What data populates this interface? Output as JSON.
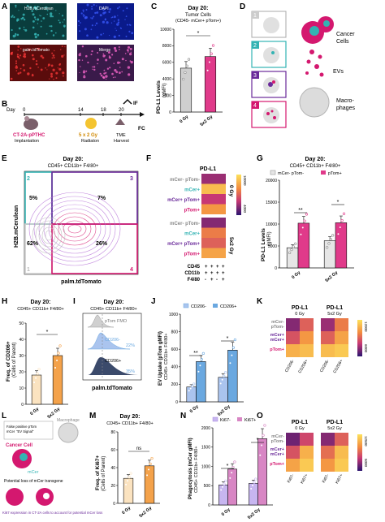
{
  "panels": {
    "A": {
      "letter": "A",
      "labels": [
        "H2B.mCerulean",
        "DAPI",
        "palm.tdTomato",
        "Merge"
      ]
    },
    "B": {
      "letter": "B",
      "day_label": "Day",
      "days": [
        "0",
        "14",
        "18",
        "20"
      ],
      "ct": "CT-2A-pPTHC",
      "ct_sub": "Implantation",
      "rad": "5 x 2 Gy",
      "rad_sub": "Radiaton",
      "tme": "TME",
      "tme_sub": "Harvest",
      "if": "IF",
      "fc": "FC"
    },
    "C": {
      "letter": "C",
      "title": "Day 20:",
      "subtitle": "Tumor Cells",
      "subtitle2": "(CD45- mCer+ pTom+)",
      "ylabel1": "PD-L1 Levels",
      "ylabel2": "(gMFI)",
      "yticks": [
        "0",
        "2000",
        "4000",
        "6000",
        "8000",
        "10000"
      ],
      "xticks": [
        "0 Gy",
        "5x2 Gy"
      ],
      "sig": "*"
    },
    "D": {
      "letter": "D",
      "steps": [
        "1",
        "2",
        "3",
        "4"
      ],
      "cancer": "Cancer",
      "cells": "Cells",
      "evs": "EVs",
      "macro": "Macro-",
      "phages": "phages"
    },
    "E": {
      "letter": "E",
      "title": "Day 20:",
      "subtitle": "CD45+ CD11b+ F4/80+",
      "quadrants": [
        "2",
        "3",
        "1",
        "4"
      ],
      "pct": [
        "5%",
        "7%",
        "62%",
        "26%"
      ],
      "ylabel": "H2B.mCerulean",
      "xlabel": "palm.tdTomato"
    },
    "F": {
      "letter": "F",
      "title": "PD-L1",
      "rows": [
        "mCer- pTom-",
        "mCer+",
        "mCer+ pTom+",
        "pTom+",
        "mCer- pTom-",
        "mCer+",
        "mCer+ pTom+",
        "pTom+"
      ],
      "groups": [
        "0 Gy",
        "5x2 Gy"
      ],
      "scale": [
        "10000",
        "4000"
      ],
      "markers": [
        "CD45",
        "CD11b",
        "F4/80"
      ],
      "signs": [
        [
          "+",
          "+",
          "+",
          "+"
        ],
        [
          "+",
          "+",
          "+",
          "+"
        ],
        [
          "-",
          "+",
          "-",
          "+"
        ]
      ]
    },
    "G": {
      "letter": "G",
      "title": "Day 20:",
      "subtitle": "CD45+ CD11b+ F4/80+",
      "legend": [
        "mCer- pTom-",
        "pTom+"
      ],
      "ylabel1": "PD-L1 Levels",
      "ylabel2": "(gMFI)",
      "yticks": [
        "0",
        "5000",
        "10000",
        "15000",
        "20000"
      ],
      "xticks": [
        "0 Gy",
        "5x2 Gy"
      ],
      "sig": [
        "**",
        "*"
      ]
    },
    "H": {
      "letter": "H",
      "title": "Day 20:",
      "subtitle": "CD45+ CD11b+ F4/80+",
      "ylabel1": "Freq. of CD206+",
      "ylabel2": "(Cells of Parent)",
      "yticks": [
        "0",
        "10",
        "20",
        "30",
        "40",
        "50"
      ],
      "xticks": [
        "0 Gy",
        "5x2 Gy"
      ],
      "sig": "*"
    },
    "I": {
      "letter": "I",
      "title": "Day 20:",
      "subtitle": "CD45+ CD11b+ F4/80+",
      "hist": [
        "pTom FMO",
        "CD206-",
        "CD206+"
      ],
      "pct": [
        "22%",
        "35%"
      ],
      "xlabel": "palm.tdTomato"
    },
    "J": {
      "letter": "J",
      "legend": [
        "CD206-",
        "CD206+"
      ],
      "ylabel1": "EV Uptake (pTom gMFI)",
      "ylabel2": "CD45+ CD11b+ F4/80+",
      "yticks": [
        "0",
        "200",
        "400",
        "600",
        "800",
        "1000"
      ],
      "xticks": [
        "0 Gy",
        "5x2 Gy"
      ],
      "sig": [
        "**",
        "*"
      ]
    },
    "K": {
      "letter": "K",
      "titles": [
        "PD-L1",
        "PD-L1"
      ],
      "groups": [
        "0 Gy",
        "5x2 Gy"
      ],
      "rows": [
        "mCer-",
        "pTom-",
        "mCer+",
        "mCer+",
        "pTom+",
        "pTom+"
      ],
      "cols": [
        "CD206-",
        "CD206+"
      ],
      "scale": [
        "12000",
        "6000"
      ]
    },
    "L": {
      "letter": "L",
      "box": [
        "False positive pTom",
        "mCer",
        "\"EV Signal\""
      ],
      "macro": "Macrophage",
      "cancer": "Cancer Cell",
      "mcer": "mCer",
      "loss_text": "Potential loss of mCer transgene",
      "ki": "Ki67 expression in CT-2A cells to account for potential mCer loss"
    },
    "M": {
      "letter": "M",
      "title": "Day 20:",
      "subtitle": "CD45+ CD11b+ F4/80+",
      "ylabel1": "Freq. of Ki67+",
      "ylabel2": "(Cells of Parent)",
      "yticks": [
        "0",
        "20",
        "40",
        "60",
        "80"
      ],
      "xticks": [
        "0 Gy",
        "5x2 Gy"
      ],
      "sig": "ns"
    },
    "N": {
      "letter": "N",
      "legend": [
        "Ki67-",
        "Ki67+"
      ],
      "ylabel1": "Phagocytosis (mCer gMFI)",
      "ylabel2": "CD45+ CD11b+ F4/80+",
      "yticks": [
        "0",
        "500",
        "1000",
        "1500",
        "2000"
      ],
      "xticks": [
        "0 Gy",
        "5x2 Gy"
      ],
      "sig": [
        "*",
        "*"
      ]
    },
    "O": {
      "letter": "O",
      "titles": [
        "PD-L1",
        "PD-L1"
      ],
      "groups": [
        "0 Gy",
        "5x2 Gy"
      ],
      "rows": [
        "mCer-",
        "pTom-",
        "mCer+",
        "mCer+",
        "pTom+",
        "pTom+"
      ],
      "cols": [
        "Ki67-",
        "Ki67+"
      ],
      "scale": [
        "12500",
        "5000"
      ]
    }
  },
  "chart_data": [
    {
      "panel": "C",
      "type": "bar",
      "categories": [
        "0 Gy",
        "5x2 Gy"
      ],
      "values": [
        5300,
        6700
      ],
      "ylim": [
        0,
        10000
      ],
      "colors": [
        "#cfcfcf",
        "#e03a8a"
      ]
    },
    {
      "panel": "G",
      "type": "bar",
      "categories": [
        "0 Gy",
        "5x2 Gy"
      ],
      "series": [
        {
          "name": "mCer- pTom-",
          "values": [
            4600,
            6200
          ]
        },
        {
          "name": "pTom+",
          "values": [
            10200,
            10300
          ]
        }
      ],
      "ylim": [
        0,
        20000
      ]
    },
    {
      "panel": "H",
      "type": "bar",
      "categories": [
        "0 Gy",
        "5x2 Gy"
      ],
      "values": [
        18,
        30
      ],
      "ylim": [
        0,
        50
      ]
    },
    {
      "panel": "J",
      "type": "bar",
      "categories": [
        "0 Gy",
        "5x2 Gy"
      ],
      "series": [
        {
          "name": "CD206-",
          "values": [
            170,
            280
          ]
        },
        {
          "name": "CD206+",
          "values": [
            460,
            590
          ]
        }
      ],
      "ylim": [
        0,
        1000
      ]
    },
    {
      "panel": "M",
      "type": "bar",
      "categories": [
        "0 Gy",
        "5x2 Gy"
      ],
      "values": [
        28,
        42
      ],
      "ylim": [
        0,
        80
      ]
    },
    {
      "panel": "N",
      "type": "bar",
      "categories": [
        "0 Gy",
        "5x2 Gy"
      ],
      "series": [
        {
          "name": "Ki67-",
          "values": [
            520,
            560
          ]
        },
        {
          "name": "Ki67+",
          "values": [
            930,
            1720
          ]
        }
      ],
      "ylim": [
        0,
        2000
      ]
    },
    {
      "panel": "F",
      "type": "heatmap",
      "values": [
        [
          0.25,
          0.85,
          0.35,
          0.7,
          0.2,
          0.6,
          0.5,
          0.75
        ]
      ]
    },
    {
      "panel": "K",
      "type": "heatmap",
      "values": [
        [
          0.2,
          0.5
        ],
        [
          0.45,
          0.7
        ],
        [
          0.8,
          0.85
        ],
        [
          0.25,
          0.6
        ],
        [
          0.5,
          0.75
        ],
        [
          0.85,
          0.9
        ]
      ]
    },
    {
      "panel": "O",
      "type": "heatmap",
      "values": [
        [
          0.15,
          0.4
        ],
        [
          0.45,
          0.8
        ],
        [
          0.75,
          0.9
        ],
        [
          0.2,
          0.5
        ],
        [
          0.55,
          0.85
        ],
        [
          0.7,
          0.9
        ]
      ]
    }
  ],
  "colors": {
    "mcer": "#33b3b3",
    "ptom": "#d4186f",
    "purple": "#6a2a9a",
    "gray": "#bdbdbd",
    "pink": "#e03a8a",
    "blue": "#6aa8e0",
    "lightblue": "#aac4ee",
    "violet": "#a887e0"
  }
}
